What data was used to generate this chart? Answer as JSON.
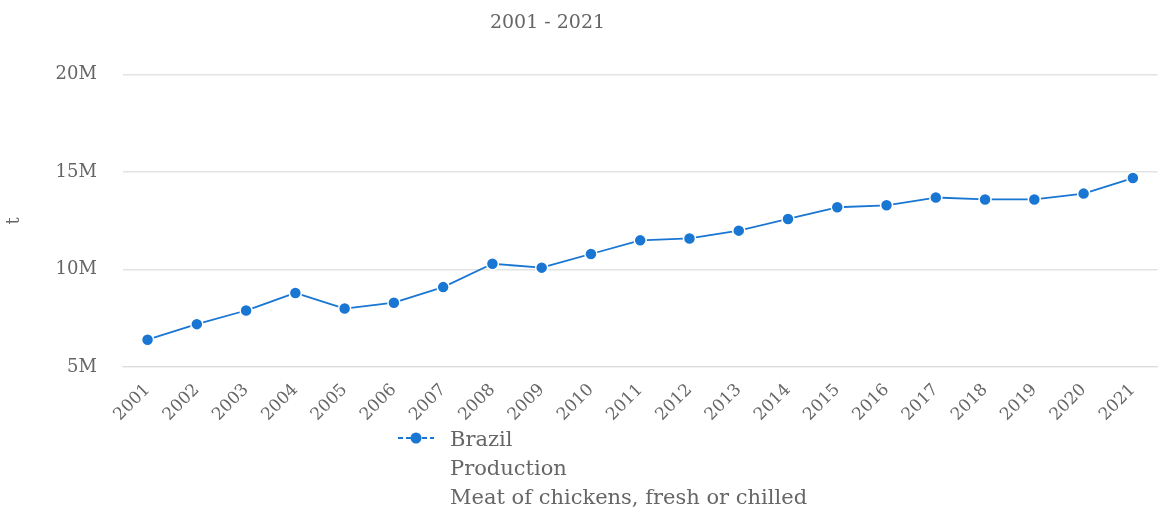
{
  "chart_data": {
    "type": "line",
    "subtitle": "2001 - 2021",
    "ylabel": "t",
    "categories": [
      "2001",
      "2002",
      "2003",
      "2004",
      "2005",
      "2006",
      "2007",
      "2008",
      "2009",
      "2010",
      "2011",
      "2012",
      "2013",
      "2014",
      "2015",
      "2016",
      "2017",
      "2018",
      "2019",
      "2020",
      "2021"
    ],
    "series": [
      {
        "name": "Brazil\nProduction\nMeat of chickens, fresh or chilled",
        "color": "#1976d2",
        "values": [
          6400000,
          7200000,
          7900000,
          8800000,
          8000000,
          8300000,
          9100000,
          10300000,
          10100000,
          10800000,
          11500000,
          11600000,
          12000000,
          12600000,
          13200000,
          13300000,
          13700000,
          13600000,
          13600000,
          13900000,
          14700000
        ]
      }
    ],
    "ylim": [
      5000000,
      20000000
    ],
    "yticks": [
      {
        "value": 5000000,
        "label": "5M"
      },
      {
        "value": 10000000,
        "label": "10M"
      },
      {
        "value": 15000000,
        "label": "15M"
      },
      {
        "value": 20000000,
        "label": "20M"
      }
    ],
    "grid": "y",
    "legend": "bottom",
    "marker": "circle",
    "line_style": "solid"
  }
}
